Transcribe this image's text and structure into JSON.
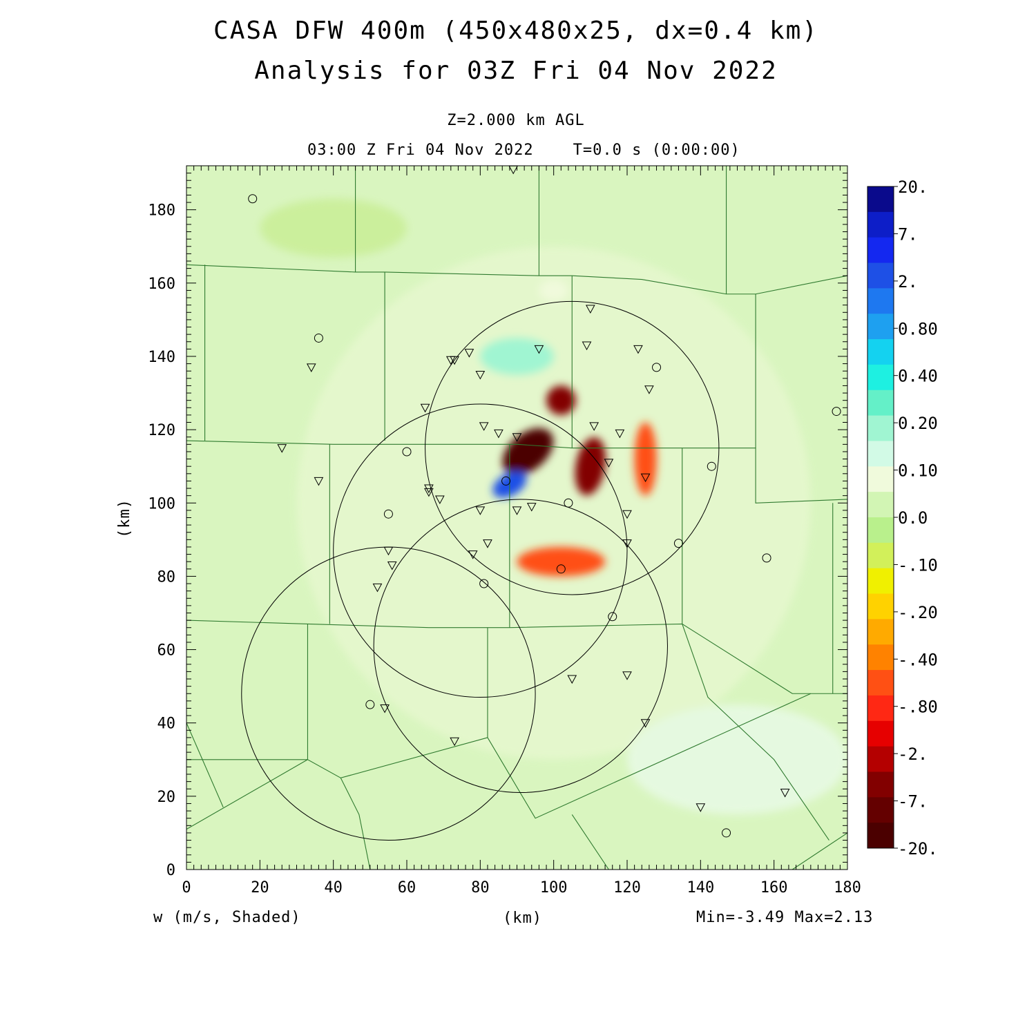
{
  "header": {
    "title_line1": "CASA DFW 400m (450x480x25, dx=0.4 km)",
    "title_line2": "Analysis for 03Z Fri 04 Nov 2022",
    "level": "Z=2.000 km AGL",
    "time": "03:00 Z Fri 04 Nov 2022    T=0.0 s (0:00:00)"
  },
  "footer": {
    "variable": "w (m/s, Shaded)",
    "xunit": "(km)",
    "minmax": "Min=-3.49 Max=2.13"
  },
  "axes": {
    "ylabel": "(km)",
    "xlim": [
      0,
      180
    ],
    "ylim": [
      0,
      192
    ],
    "x_ticks": [
      0,
      20,
      40,
      60,
      80,
      100,
      120,
      140,
      160,
      180
    ],
    "y_ticks": [
      0,
      20,
      40,
      60,
      80,
      100,
      120,
      140,
      160,
      180
    ]
  },
  "colorbar": {
    "labels": [
      "20.",
      "7.",
      "2.",
      "0.80",
      "0.40",
      "0.20",
      "0.10",
      "0.0",
      "-.10",
      "-.20",
      "-.40",
      "-.80",
      "-2.",
      "-7.",
      "-20."
    ],
    "colors_top_to_bottom": [
      "#0a0a8c",
      "#0d1ec8",
      "#1428f0",
      "#1e50e6",
      "#1e78f0",
      "#1ea0f0",
      "#14d2f0",
      "#1ef0e1",
      "#64f0c8",
      "#a0f5d2",
      "#d2fae6",
      "#f0fadc",
      "#d2f5b4",
      "#b9f08c",
      "#d2f05a",
      "#f0f000",
      "#ffd200",
      "#ffaa00",
      "#ff8200",
      "#ff5014",
      "#ff2814",
      "#e60000",
      "#b40000",
      "#820000",
      "#640000",
      "#4b0000"
    ]
  },
  "chart_data": {
    "type": "heatmap",
    "field": "w",
    "units": "m/s",
    "min": -3.49,
    "max": 2.13,
    "radar_range_circles": [
      {
        "center": [
          105,
          115
        ],
        "radius": 40
      },
      {
        "center": [
          80,
          87
        ],
        "radius": 40
      },
      {
        "center": [
          91,
          61
        ],
        "radius": 40
      },
      {
        "center": [
          55,
          48
        ],
        "radius": 40
      }
    ],
    "station_circles": [
      [
        18,
        183
      ],
      [
        36,
        145
      ],
      [
        60,
        114
      ],
      [
        55,
        97
      ],
      [
        87,
        106
      ],
      [
        104,
        100
      ],
      [
        102,
        82
      ],
      [
        81,
        78
      ],
      [
        116,
        69
      ],
      [
        128,
        137
      ],
      [
        143,
        110
      ],
      [
        134,
        89
      ],
      [
        158,
        85
      ],
      [
        177,
        125
      ],
      [
        50,
        45
      ],
      [
        147,
        10
      ]
    ],
    "station_triangles": [
      [
        89,
        191
      ],
      [
        34,
        137
      ],
      [
        26,
        115
      ],
      [
        36,
        106
      ],
      [
        72,
        139
      ],
      [
        73,
        139
      ],
      [
        77,
        141
      ],
      [
        80,
        135
      ],
      [
        65,
        126
      ],
      [
        81,
        121
      ],
      [
        85,
        119
      ],
      [
        90,
        118
      ],
      [
        96,
        142
      ],
      [
        109,
        143
      ],
      [
        110,
        153
      ],
      [
        123,
        142
      ],
      [
        126,
        131
      ],
      [
        111,
        121
      ],
      [
        118,
        119
      ],
      [
        115,
        111
      ],
      [
        125,
        107
      ],
      [
        66,
        104
      ],
      [
        66,
        103
      ],
      [
        69,
        101
      ],
      [
        80,
        98
      ],
      [
        90,
        98
      ],
      [
        94,
        99
      ],
      [
        120,
        97
      ],
      [
        120,
        89
      ],
      [
        82,
        89
      ],
      [
        78,
        86
      ],
      [
        55,
        87
      ],
      [
        56,
        83
      ],
      [
        52,
        77
      ],
      [
        105,
        52
      ],
      [
        120,
        53
      ],
      [
        125,
        40
      ],
      [
        54,
        44
      ],
      [
        73,
        35
      ],
      [
        140,
        17
      ],
      [
        163,
        21
      ]
    ],
    "shading_blobs": [
      {
        "cx": 93,
        "cy": 114,
        "rx": 8,
        "ry": 5,
        "rot": -40,
        "value": -2.5
      },
      {
        "cx": 88,
        "cy": 105,
        "rx": 5,
        "ry": 3,
        "rot": -30,
        "value": 2.13
      },
      {
        "cx": 102,
        "cy": 128,
        "rx": 4,
        "ry": 4,
        "rot": 0,
        "value": -1.5
      },
      {
        "cx": 110,
        "cy": 110,
        "rx": 4,
        "ry": 8,
        "rot": 10,
        "value": -1.2
      },
      {
        "cx": 102,
        "cy": 84,
        "rx": 12,
        "ry": 4,
        "rot": 0,
        "value": -0.3
      },
      {
        "cx": 125,
        "cy": 112,
        "rx": 3,
        "ry": 10,
        "rot": 0,
        "value": -0.25
      },
      {
        "cx": 90,
        "cy": 140,
        "rx": 10,
        "ry": 5,
        "rot": 0,
        "value": 0.3
      },
      {
        "cx": 100,
        "cy": 158,
        "rx": 4,
        "ry": 3,
        "rot": 0,
        "value": 0.2
      }
    ]
  }
}
